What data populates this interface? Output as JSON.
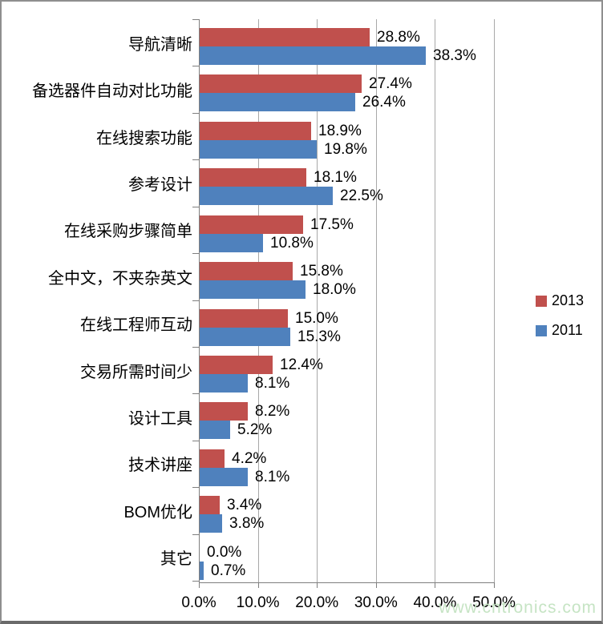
{
  "watermark": {
    "text": "www.cntronics.com",
    "color": "#c6e4c4"
  },
  "chart_data": {
    "type": "bar",
    "orientation": "horizontal",
    "title": "",
    "xlabel": "",
    "ylabel": "",
    "categories": [
      "导航清晰",
      "备选器件自动对比功能",
      "在线搜索功能",
      "参考设计",
      "在线采购步骤简单",
      "全中文，不夹杂英文",
      "在线工程师互动",
      "交易所需时间少",
      "设计工具",
      "技术讲座",
      "BOM优化",
      "其它"
    ],
    "series": [
      {
        "name": "2013",
        "color": "#C0504D",
        "values": [
          28.8,
          27.4,
          18.9,
          18.1,
          17.5,
          15.8,
          15.0,
          12.4,
          8.2,
          4.2,
          3.4,
          0.0
        ]
      },
      {
        "name": "2011",
        "color": "#4F81BD",
        "values": [
          38.3,
          26.4,
          19.8,
          22.5,
          10.8,
          18.0,
          15.3,
          8.1,
          5.2,
          8.1,
          3.8,
          0.7
        ]
      }
    ],
    "value_label_suffix": "%",
    "x_tick_labels": [
      "0.0%",
      "10.0%",
      "20.0%",
      "30.0%",
      "40.0%",
      "50.0%"
    ],
    "xlim": [
      0,
      50
    ],
    "grid": "vertical-gridlines",
    "legend_position": "middle-right"
  }
}
